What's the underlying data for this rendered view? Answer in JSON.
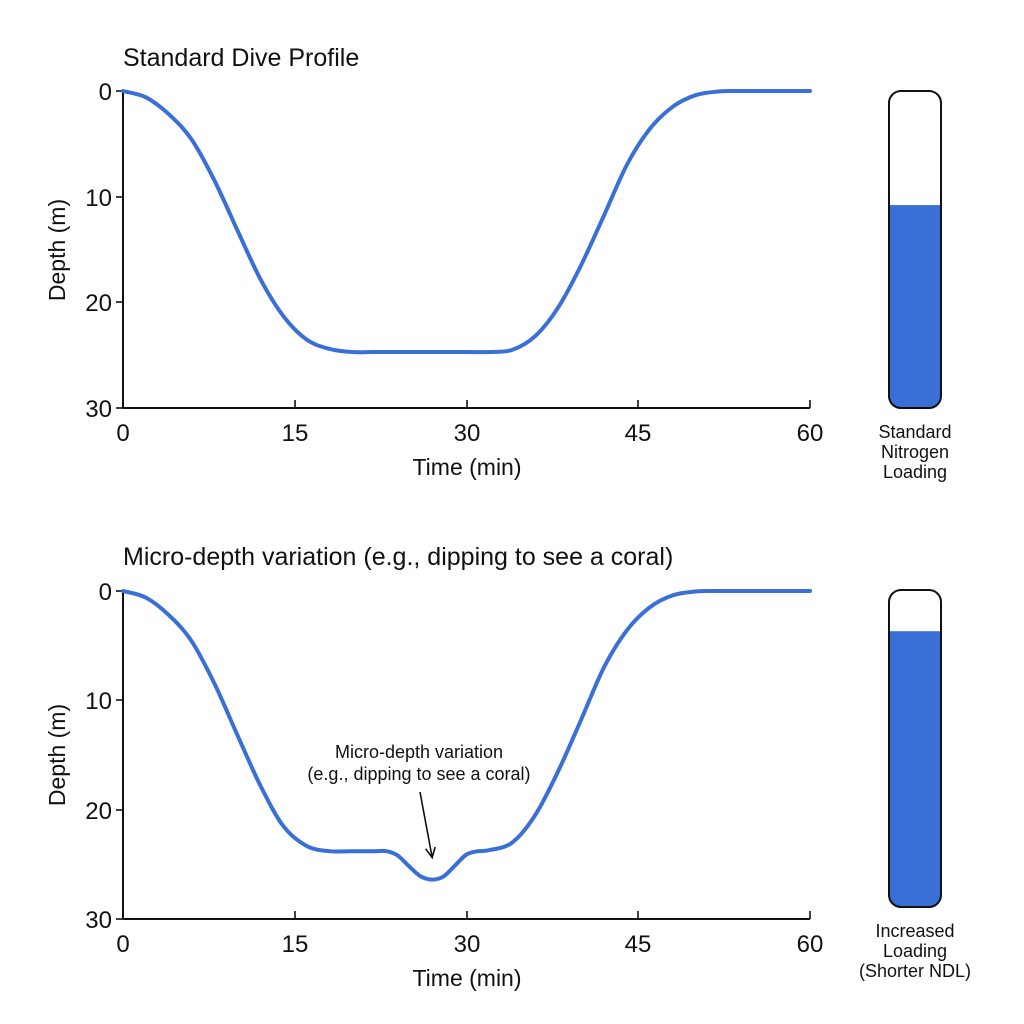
{
  "colors": {
    "line": "#3a6fd8",
    "gauge_fill": "#3a6fd8",
    "axis": "#111111",
    "background": "#ffffff"
  },
  "chart_data": [
    {
      "type": "line",
      "title": "Standard Dive Profile",
      "xlabel": "Time (min)",
      "ylabel": "Depth (m)",
      "xlim": [
        0,
        60
      ],
      "ylim": [
        30,
        0
      ],
      "y_inverted": true,
      "grid": false,
      "xticks": [
        "0",
        "15",
        "30",
        "45",
        "60"
      ],
      "yticks": [
        "0",
        "10",
        "20",
        "30"
      ],
      "series": [
        {
          "x": [
            0,
            2,
            4,
            6,
            8,
            10,
            12,
            14,
            16,
            18,
            20,
            22,
            24,
            26,
            28,
            30,
            32,
            34,
            36,
            38,
            40,
            42,
            44,
            46,
            48,
            50,
            52,
            54,
            56,
            58,
            60
          ],
          "y": [
            0,
            0.6,
            2.2,
            4.6,
            8.5,
            13.2,
            17.8,
            21.3,
            23.5,
            24.4,
            24.7,
            24.7,
            24.7,
            24.7,
            24.7,
            24.7,
            24.7,
            24.5,
            23.2,
            20.5,
            16.5,
            11.8,
            7.0,
            3.6,
            1.5,
            0.4,
            0.05,
            0,
            0,
            0,
            0
          ]
        }
      ],
      "gauge": {
        "label_lines": [
          "Standard",
          "Nitrogen",
          "Loading"
        ],
        "fill_fraction": 0.64
      }
    },
    {
      "type": "line",
      "title": "Micro-depth variation (e.g., dipping to see a coral)",
      "xlabel": "Time (min)",
      "ylabel": "Depth (m)",
      "xlim": [
        0,
        60
      ],
      "ylim": [
        30,
        0
      ],
      "y_inverted": true,
      "grid": false,
      "xticks": [
        "0",
        "15",
        "30",
        "45",
        "60"
      ],
      "yticks": [
        "0",
        "10",
        "20",
        "30"
      ],
      "series": [
        {
          "x": [
            0,
            2,
            4,
            6,
            8,
            10,
            12,
            14,
            16,
            18,
            20,
            22,
            23,
            24,
            25,
            26,
            27,
            28,
            29,
            30,
            31,
            32,
            34,
            36,
            38,
            40,
            42,
            44,
            46,
            48,
            50,
            52,
            54,
            56,
            58,
            60
          ],
          "y": [
            0,
            0.6,
            2.2,
            4.6,
            8.5,
            13.2,
            17.8,
            21.5,
            23.3,
            23.8,
            23.8,
            23.8,
            23.8,
            24.2,
            25.2,
            26.1,
            26.4,
            26.1,
            25.1,
            24.1,
            23.8,
            23.7,
            23.0,
            20.5,
            16.5,
            11.8,
            7.0,
            3.6,
            1.5,
            0.4,
            0.05,
            0,
            0,
            0,
            0,
            0
          ]
        }
      ],
      "annotation": {
        "lines": [
          "Micro-depth variation",
          "(e.g., dipping to see a coral)"
        ],
        "target_x": 27,
        "target_y": 26.4
      },
      "gauge": {
        "label_lines": [
          "Increased",
          "Loading",
          "(Shorter NDL)"
        ],
        "fill_fraction": 0.87
      }
    }
  ]
}
